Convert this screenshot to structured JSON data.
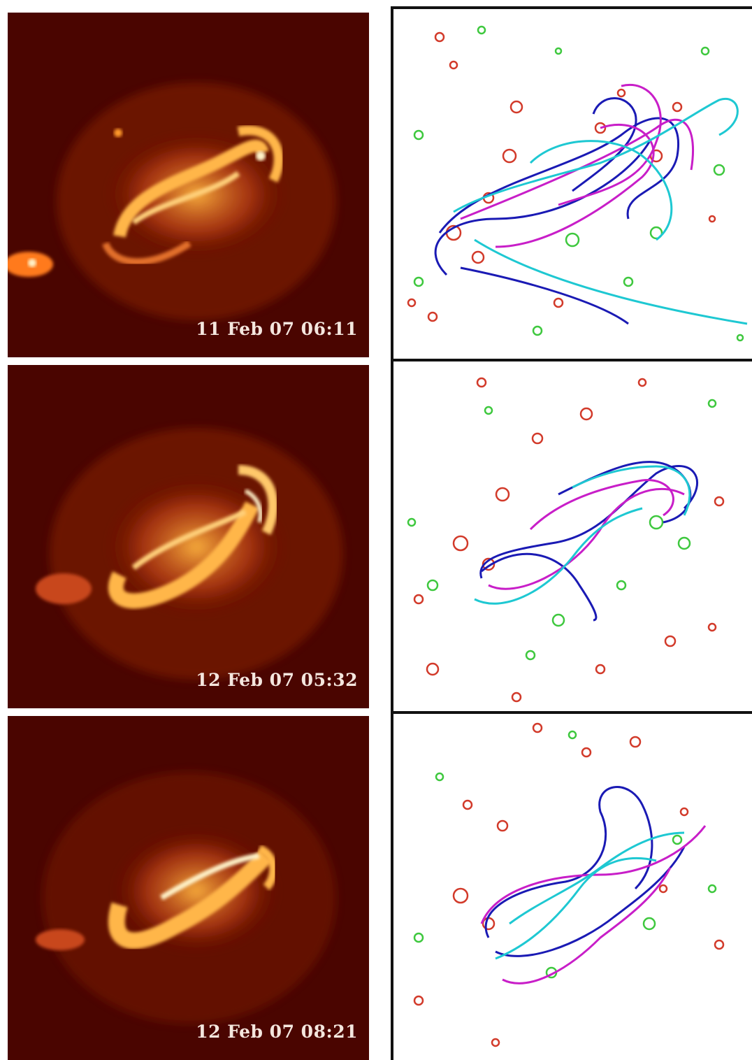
{
  "panels": [
    {
      "timestamp": "11 Feb 07 06:11"
    },
    {
      "timestamp": "12 Feb 07 05:32"
    },
    {
      "timestamp": "12 Feb 07 08:21"
    }
  ],
  "colors": {
    "xrt_background": "#4a0500",
    "xrt_emission": "#ff9a2a",
    "xrt_core": "#fff2c8",
    "polarity_positive": "#d23a2a",
    "polarity_negative": "#3ec83e",
    "field_line_blue": "#1a1ab4",
    "field_line_magenta": "#c81ec8",
    "field_line_cyan": "#1ec8d2"
  }
}
